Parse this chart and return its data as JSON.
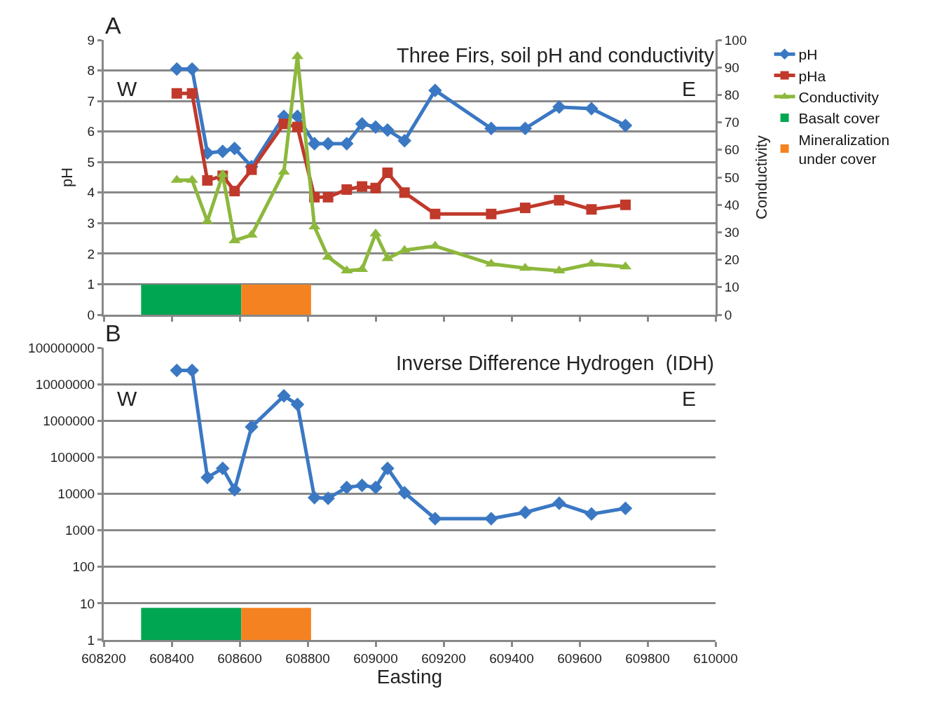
{
  "chart_data": [
    {
      "type": "line",
      "title": "Three Firs, soil pH and conductivity",
      "ylabel": "pH",
      "y2label": "Conductivity",
      "annotations": [
        "A",
        "W",
        "E"
      ],
      "x": [
        608415,
        608460,
        608505,
        608550,
        608585,
        608635,
        608730,
        608770,
        608820,
        608860,
        608915,
        608960,
        609000,
        609035,
        609085,
        609175,
        609340,
        609440,
        609540,
        609635,
        609735
      ],
      "series": [
        {
          "name": "pH",
          "color": "#3a78c3",
          "marker": "diamond",
          "values": [
            8.05,
            8.05,
            5.3,
            5.35,
            5.45,
            4.85,
            6.5,
            6.5,
            5.6,
            5.6,
            5.6,
            6.25,
            6.15,
            6.05,
            5.7,
            7.35,
            6.1,
            6.1,
            6.8,
            6.75,
            6.2
          ]
        },
        {
          "name": "pHa",
          "color": "#c0392b",
          "marker": "square",
          "values": [
            7.25,
            7.25,
            4.4,
            4.55,
            4.05,
            4.75,
            6.25,
            6.15,
            3.85,
            3.85,
            4.1,
            4.2,
            4.15,
            4.65,
            4.0,
            3.3,
            3.3,
            3.5,
            3.75,
            3.45,
            3.6
          ]
        },
        {
          "name": "Conductivity",
          "color": "#8db83c",
          "marker": "triangle",
          "axis": "y2",
          "values": [
            49,
            49,
            34,
            51,
            27,
            29,
            52,
            94,
            32,
            21,
            16,
            16.5,
            29.5,
            20.5,
            23.5,
            25,
            18.5,
            17,
            16,
            18.5,
            17.5
          ]
        }
      ],
      "bands": [
        {
          "axis": "x",
          "from": 608310,
          "to": 608605,
          "label": "Basalt cover",
          "color": "#00a651"
        },
        {
          "axis": "x",
          "from": 608605,
          "to": 608810,
          "label": "Mineralization under cover",
          "color": "#f58220"
        }
      ],
      "xlim": [
        608200,
        610000
      ],
      "xticks": [
        608200,
        608400,
        608600,
        608800,
        609000,
        609200,
        609400,
        609600,
        609800,
        610000
      ],
      "ylim": [
        0,
        9
      ],
      "yticks": [
        0,
        1,
        2,
        3,
        4,
        5,
        6,
        7,
        8,
        9
      ],
      "y2lim": [
        0,
        100
      ],
      "y2ticks": [
        0,
        10,
        20,
        30,
        40,
        50,
        60,
        70,
        80,
        90,
        100
      ],
      "tick_labels": "y",
      "grid": "y",
      "legend": "right",
      "line_style": "solid"
    },
    {
      "type": "line",
      "title": "Inverse Difference Hydrogen  (IDH)",
      "xlabel": "Easting",
      "annotations": [
        "B",
        "W",
        "E"
      ],
      "x": [
        608415,
        608460,
        608505,
        608550,
        608585,
        608635,
        608730,
        608770,
        608820,
        608860,
        608915,
        608960,
        609000,
        609035,
        609085,
        609175,
        609340,
        609440,
        609540,
        609635,
        609735
      ],
      "series": [
        {
          "color": "#3a78c3",
          "marker": "diamond",
          "values": [
            24000000,
            24000000,
            28000,
            50000,
            13000,
            680000,
            4800000,
            2800000,
            7900,
            7500,
            15000,
            17000,
            15000,
            50000,
            10700,
            2100,
            2100,
            3100,
            5500,
            2800,
            4000
          ]
        }
      ],
      "bands": [
        {
          "axis": "x",
          "from": 608310,
          "to": 608605,
          "color": "#00a651"
        },
        {
          "axis": "x",
          "from": 608605,
          "to": 608810,
          "color": "#f58220"
        }
      ],
      "xlim": [
        608200,
        610000
      ],
      "xticks": [
        608200,
        608400,
        608600,
        608800,
        609000,
        609200,
        609400,
        609600,
        609800,
        610000
      ],
      "ylim": [
        1,
        100000000
      ],
      "yticks": [
        1,
        10,
        100,
        1000,
        10000,
        100000,
        1000000,
        10000000,
        100000000
      ],
      "log": "y",
      "grid": "y",
      "legend": false,
      "line_style": "solid"
    }
  ]
}
